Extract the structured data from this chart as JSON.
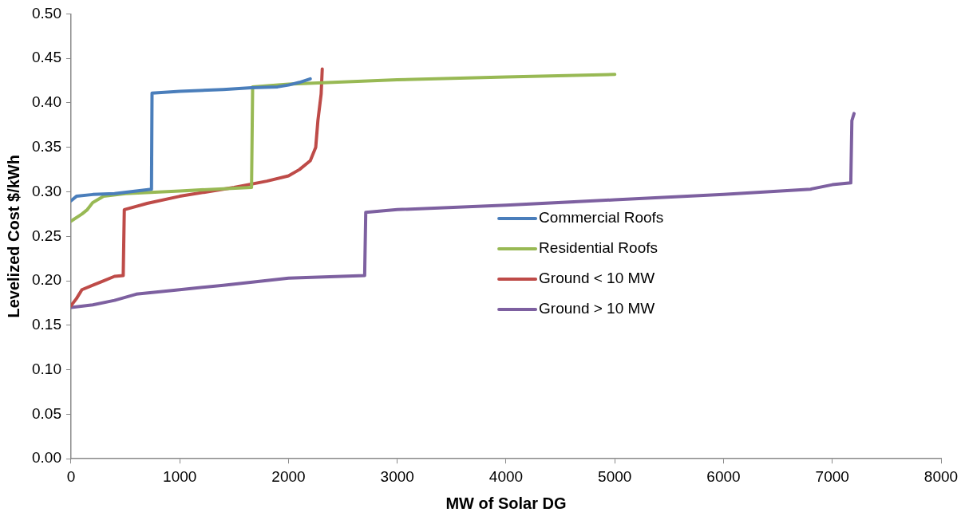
{
  "chart_data": {
    "type": "line",
    "xlabel": "MW of Solar DG",
    "ylabel": "Levelized Cost $/kWh",
    "xlim": [
      0,
      8000
    ],
    "xticks": [
      0,
      1000,
      2000,
      3000,
      4000,
      5000,
      6000,
      7000,
      8000
    ],
    "ylim": [
      0,
      0.5
    ],
    "yticks": [
      {
        "value": 0,
        "label": "0.00"
      },
      {
        "value": 0.05,
        "label": "0.05"
      },
      {
        "value": 0.1,
        "label": "0.10"
      },
      {
        "value": 0.15,
        "label": "0.15"
      },
      {
        "value": 0.2,
        "label": "0.20"
      },
      {
        "value": 0.25,
        "label": "0.25"
      },
      {
        "value": 0.3,
        "label": "0.30"
      },
      {
        "value": 0.35,
        "label": "0.35"
      },
      {
        "value": 0.4,
        "label": "0.40"
      },
      {
        "value": 0.45,
        "label": "0.45"
      },
      {
        "value": 0.5,
        "label": "0.50"
      }
    ],
    "grid": false,
    "legend": "center",
    "marker": "none",
    "line_style": "solid",
    "series": [
      {
        "name": "Commercial Roofs",
        "color": "#4a7ebb",
        "x": [
          0,
          50,
          200,
          400,
          600,
          740,
          745,
          1000,
          1400,
          1660,
          1900,
          2000,
          2100,
          2200
        ],
        "values": [
          0.29,
          0.295,
          0.297,
          0.298,
          0.301,
          0.303,
          0.411,
          0.413,
          0.415,
          0.417,
          0.418,
          0.42,
          0.423,
          0.427
        ]
      },
      {
        "name": "Residential Roofs",
        "color": "#98b954",
        "x": [
          0,
          100,
          150,
          200,
          300,
          500,
          1000,
          1660,
          1670,
          2000,
          3000,
          4000,
          5000
        ],
        "values": [
          0.267,
          0.275,
          0.28,
          0.288,
          0.295,
          0.298,
          0.301,
          0.305,
          0.418,
          0.421,
          0.426,
          0.429,
          0.432
        ]
      },
      {
        "name": "Ground < 10 MW",
        "color": "#be4b48",
        "x": [
          0,
          50,
          100,
          200,
          300,
          400,
          480,
          490,
          700,
          1000,
          1500,
          1800,
          2000,
          2100,
          2200,
          2250,
          2270,
          2300,
          2310
        ],
        "values": [
          0.172,
          0.18,
          0.19,
          0.195,
          0.2,
          0.205,
          0.206,
          0.28,
          0.287,
          0.295,
          0.305,
          0.312,
          0.318,
          0.325,
          0.335,
          0.35,
          0.38,
          0.41,
          0.438
        ]
      },
      {
        "name": "Ground > 10 MW",
        "color": "#7d60a0",
        "x": [
          0,
          200,
          400,
          600,
          1000,
          1400,
          2000,
          2700,
          2710,
          3000,
          4000,
          5000,
          6000,
          6800,
          7000,
          7170,
          7180,
          7200
        ],
        "values": [
          0.17,
          0.173,
          0.178,
          0.185,
          0.19,
          0.195,
          0.203,
          0.206,
          0.277,
          0.28,
          0.285,
          0.291,
          0.297,
          0.303,
          0.308,
          0.31,
          0.38,
          0.388
        ]
      }
    ]
  }
}
